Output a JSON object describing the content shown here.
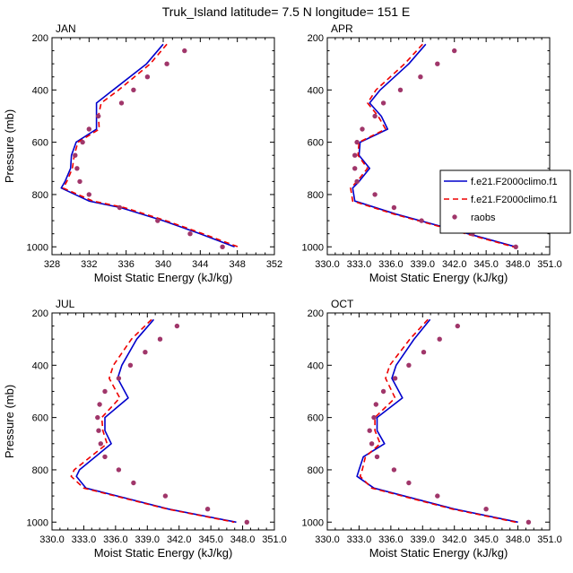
{
  "figure_title": "Truk_Island  latitude= 7.5 N longitude= 151 E",
  "legend": {
    "entries": [
      {
        "label": "f.e21.F2000climo.f1",
        "color": "#0000cc",
        "style": "solid"
      },
      {
        "label": "f.e21.F2000climo.f1",
        "color": "#ee0000",
        "style": "dashed"
      },
      {
        "label": "raobs",
        "color": "#a0366a",
        "style": "marker"
      }
    ]
  },
  "chart_data": [
    {
      "type": "line",
      "panel": "JAN",
      "title": "JAN",
      "xlabel": "Moist Static Energy (kJ/kg)",
      "ylabel": "Pressure (mb)",
      "xlim": [
        328,
        352
      ],
      "ylim": [
        1030,
        200
      ],
      "xticks": [
        328,
        332,
        336,
        340,
        344,
        348,
        352
      ],
      "xtick_labels": [
        "328",
        "332",
        "336",
        "340",
        "344",
        "348",
        "352"
      ],
      "yticks": [
        200,
        400,
        600,
        800,
        1000
      ],
      "ytick_labels": [
        "200",
        "400",
        "600",
        "800",
        "1000"
      ],
      "series": [
        {
          "name": "f.e21.F2000climo.f1",
          "color": "#0000cc",
          "dash": "",
          "pressure": [
            225,
            300,
            400,
            450,
            500,
            550,
            600,
            650,
            700,
            750,
            775,
            825,
            850,
            900,
            950,
            1000
          ],
          "values": [
            340.0,
            338.2,
            334.6,
            332.8,
            332.8,
            332.8,
            330.6,
            330.1,
            330.0,
            329.4,
            329.0,
            332.0,
            335.4,
            340.0,
            344.0,
            347.7
          ]
        },
        {
          "name": "f.e21.F2000climo.f1",
          "color": "#ee0000",
          "dash": "6,4",
          "pressure": [
            225,
            300,
            400,
            450,
            500,
            550,
            600,
            650,
            700,
            750,
            775,
            825,
            850,
            900,
            950,
            1000
          ],
          "values": [
            340.4,
            338.6,
            335.2,
            333.3,
            333.0,
            333.1,
            330.8,
            330.4,
            330.2,
            329.6,
            329.2,
            332.4,
            335.8,
            340.3,
            344.3,
            348.1
          ]
        }
      ],
      "obs": {
        "name": "raobs",
        "color": "#a0366a",
        "pressure": [
          250,
          300,
          350,
          400,
          450,
          500,
          550,
          600,
          650,
          700,
          750,
          800,
          850,
          900,
          950,
          1000
        ],
        "values": [
          342.3,
          340.4,
          338.3,
          336.8,
          335.5,
          333.0,
          332.0,
          331.3,
          330.5,
          330.7,
          331.0,
          332.0,
          335.3,
          339.4,
          342.9,
          346.4
        ]
      }
    },
    {
      "type": "line",
      "panel": "APR",
      "title": "APR",
      "xlabel": "Moist Static Energy (kJ/kg)",
      "ylabel": "",
      "xlim": [
        330,
        351
      ],
      "ylim": [
        1030,
        200
      ],
      "xticks": [
        330,
        333,
        336,
        339,
        342,
        345,
        348,
        351
      ],
      "xtick_labels": [
        "330.0",
        "333.0",
        "336.0",
        "339.0",
        "342.0",
        "345.0",
        "348.0",
        "351.0"
      ],
      "yticks": [
        200,
        400,
        600,
        800,
        1000
      ],
      "ytick_labels": [
        "200",
        "400",
        "600",
        "800",
        "1000"
      ],
      "series": [
        {
          "name": "f.e21.F2000climo.f1",
          "color": "#0000cc",
          "dash": "",
          "pressure": [
            225,
            300,
            400,
            450,
            500,
            550,
            600,
            650,
            700,
            750,
            775,
            825,
            875,
            950,
            1000
          ],
          "values": [
            339.3,
            337.7,
            335.0,
            334.0,
            335.1,
            335.7,
            333.1,
            333.0,
            334.0,
            333.0,
            332.4,
            332.6,
            336.5,
            343.3,
            347.8
          ]
        },
        {
          "name": "f.e21.F2000climo.f1",
          "color": "#ee0000",
          "dash": "6,4",
          "pressure": [
            225,
            300,
            400,
            450,
            500,
            550,
            600,
            650,
            700,
            750,
            775,
            825,
            875,
            950,
            1000
          ],
          "values": [
            339.0,
            337.3,
            334.6,
            333.8,
            334.8,
            335.5,
            333.0,
            332.9,
            333.8,
            332.8,
            332.2,
            332.4,
            336.3,
            343.1,
            347.6
          ]
        }
      ],
      "obs": {
        "name": "raobs",
        "color": "#a0366a",
        "pressure": [
          250,
          300,
          350,
          400,
          450,
          500,
          550,
          600,
          650,
          700,
          750,
          800,
          850,
          900,
          950,
          1000
        ],
        "values": [
          342.0,
          340.4,
          338.8,
          336.9,
          335.3,
          334.5,
          333.3,
          332.8,
          332.6,
          332.6,
          332.8,
          334.5,
          336.3,
          338.9,
          343.7,
          347.8
        ]
      }
    },
    {
      "type": "line",
      "panel": "JUL",
      "title": "JUL",
      "xlabel": "Moist Static Energy (kJ/kg)",
      "ylabel": "Pressure (mb)",
      "xlim": [
        330,
        351
      ],
      "ylim": [
        1030,
        200
      ],
      "xticks": [
        330,
        333,
        336,
        339,
        342,
        345,
        348,
        351
      ],
      "xtick_labels": [
        "330.0",
        "333.0",
        "336.0",
        "339.0",
        "342.0",
        "345.0",
        "348.0",
        "351.0"
      ],
      "yticks": [
        200,
        400,
        600,
        800,
        1000
      ],
      "ytick_labels": [
        "200",
        "400",
        "600",
        "800",
        "1000"
      ],
      "series": [
        {
          "name": "f.e21.F2000climo.f1",
          "color": "#0000cc",
          "dash": "",
          "pressure": [
            225,
            300,
            400,
            450,
            525,
            600,
            650,
            700,
            800,
            825,
            870,
            950,
            1000
          ],
          "values": [
            339.6,
            338.0,
            336.6,
            336.2,
            337.2,
            335.0,
            335.0,
            335.6,
            332.6,
            332.3,
            333.2,
            341.0,
            347.4
          ]
        },
        {
          "name": "f.e21.F2000climo.f1",
          "color": "#ee0000",
          "dash": "6,4",
          "pressure": [
            225,
            300,
            400,
            450,
            525,
            600,
            650,
            700,
            800,
            825,
            870,
            950,
            1000
          ],
          "values": [
            339.4,
            337.5,
            335.8,
            335.4,
            336.4,
            334.7,
            334.8,
            335.2,
            332.1,
            331.8,
            333.0,
            340.9,
            347.2
          ]
        }
      ],
      "obs": {
        "name": "raobs",
        "color": "#a0366a",
        "pressure": [
          250,
          300,
          350,
          400,
          450,
          500,
          550,
          600,
          650,
          700,
          750,
          800,
          850,
          900,
          950,
          1000
        ],
        "values": [
          341.8,
          340.2,
          338.8,
          337.4,
          336.3,
          335.0,
          334.5,
          334.3,
          334.4,
          334.6,
          335.0,
          336.3,
          337.7,
          340.7,
          344.7,
          348.4
        ]
      }
    },
    {
      "type": "line",
      "panel": "OCT",
      "title": "OCT",
      "xlabel": "Moist Static Energy (kJ/kg)",
      "ylabel": "",
      "xlim": [
        330,
        351
      ],
      "ylim": [
        1030,
        200
      ],
      "xticks": [
        330,
        333,
        336,
        339,
        342,
        345,
        348,
        351
      ],
      "xtick_labels": [
        "330.0",
        "333.0",
        "336.0",
        "339.0",
        "342.0",
        "345.0",
        "348.0",
        "351.0"
      ],
      "yticks": [
        200,
        400,
        600,
        800,
        1000
      ],
      "ytick_labels": [
        "200",
        "400",
        "600",
        "800",
        "1000"
      ],
      "series": [
        {
          "name": "f.e21.F2000climo.f1",
          "color": "#0000cc",
          "dash": "",
          "pressure": [
            225,
            300,
            400,
            450,
            525,
            600,
            650,
            700,
            750,
            800,
            825,
            870,
            950,
            1000
          ],
          "values": [
            339.7,
            338.2,
            336.5,
            336.1,
            337.1,
            334.7,
            334.7,
            335.4,
            333.4,
            333.0,
            332.8,
            334.4,
            342.0,
            348.0
          ]
        },
        {
          "name": "f.e21.F2000climo.f1",
          "color": "#ee0000",
          "dash": "6,4",
          "pressure": [
            225,
            300,
            400,
            450,
            525,
            600,
            650,
            700,
            750,
            800,
            825,
            870,
            950,
            1000
          ],
          "values": [
            339.5,
            337.8,
            335.9,
            335.5,
            336.4,
            334.5,
            334.5,
            335.0,
            333.6,
            333.3,
            333.1,
            334.2,
            341.8,
            347.8
          ]
        }
      ],
      "obs": {
        "name": "raobs",
        "color": "#a0366a",
        "pressure": [
          250,
          300,
          350,
          400,
          450,
          500,
          550,
          600,
          650,
          700,
          750,
          800,
          850,
          900,
          950,
          1000
        ],
        "values": [
          342.3,
          340.6,
          339.1,
          337.7,
          336.4,
          335.3,
          334.6,
          334.4,
          334.0,
          334.2,
          334.7,
          336.3,
          337.7,
          340.4,
          345.0,
          349.0
        ]
      }
    }
  ]
}
